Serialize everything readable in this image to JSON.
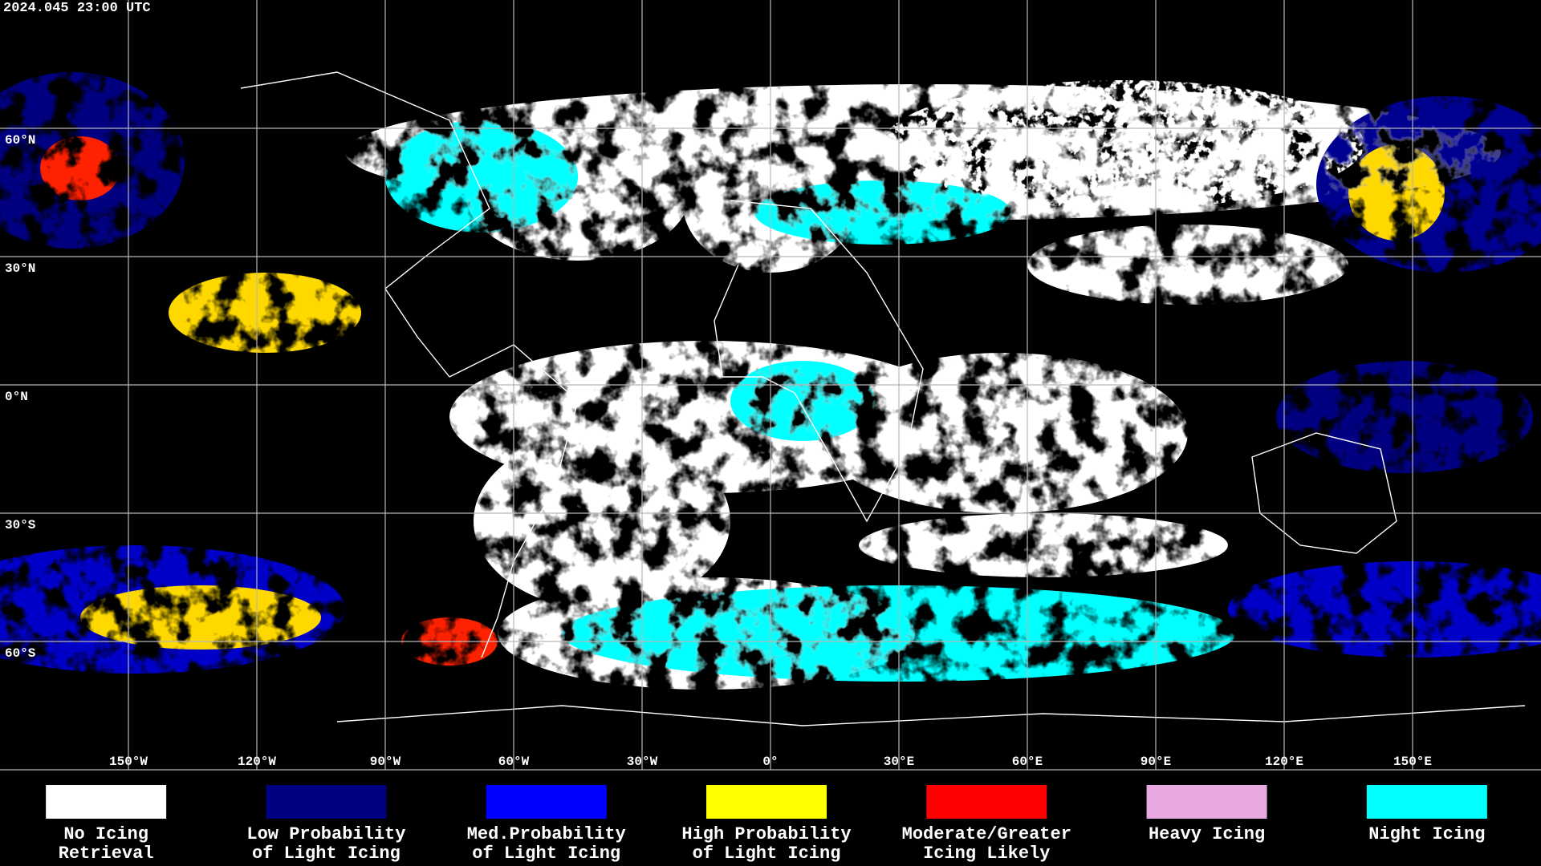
{
  "header": {
    "timestamp": "2024.045 23:00 UTC"
  },
  "map": {
    "lat_labels": [
      "60°N",
      "30°N",
      "0°N",
      "30°S",
      "60°S"
    ],
    "lon_labels": [
      "150°W",
      "120°W",
      "90°W",
      "60°W",
      "30°W",
      "0°",
      "30°E",
      "60°E",
      "90°E",
      "120°E",
      "150°E"
    ]
  },
  "legend": [
    {
      "lines": [
        "No Icing",
        "Retrieval"
      ],
      "color": "#ffffff"
    },
    {
      "lines": [
        "Low Probability",
        "of Light Icing"
      ],
      "color": "#000080"
    },
    {
      "lines": [
        "Med.Probability",
        "of Light Icing"
      ],
      "color": "#0000ff"
    },
    {
      "lines": [
        "High Probability",
        "of Light Icing"
      ],
      "color": "#ffff00"
    },
    {
      "lines": [
        "Moderate/Greater",
        "Icing Likely"
      ],
      "color": "#ff0000"
    },
    {
      "lines": [
        "Heavy Icing"
      ],
      "color": "#e8a8e0"
    },
    {
      "lines": [
        "Night Icing"
      ],
      "color": "#00ffff"
    }
  ]
}
